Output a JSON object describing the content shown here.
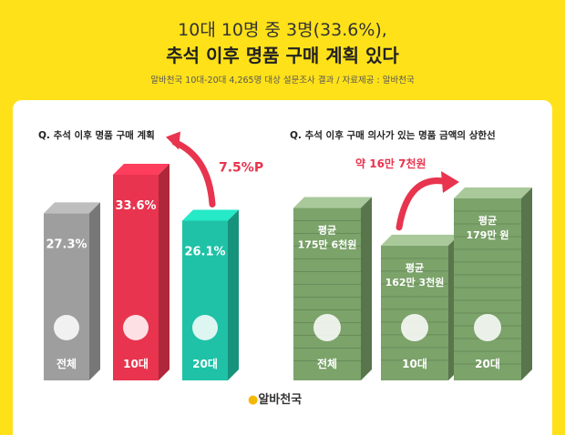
{
  "header": {
    "title_line1": "10대 10명 중 3명(33.6%),",
    "title_line2": "추석 이후 명품 구매 계획 있다",
    "subtitle": "알바천국 10대-20대 4,265명 대상 설문조사 결과 / 자료제공 : 알바천국"
  },
  "chart_data": [
    {
      "type": "bar",
      "title": "Q. 추석 이후 명품 구매 계획",
      "categories": [
        "전체",
        "10대",
        "20대"
      ],
      "values": [
        27.3,
        33.6,
        26.1
      ],
      "value_labels": [
        "27.3%",
        "33.6%",
        "26.1%"
      ],
      "unit": "%",
      "annotation": "7.5%P",
      "colors": [
        "#9E9E9E",
        "#E8344E",
        "#1FC2A6"
      ]
    },
    {
      "type": "bar",
      "title": "Q. 추석 이후 구매 의사가 있는 명품 금액의 상한선",
      "categories": [
        "전체",
        "10대",
        "20대"
      ],
      "values": [
        1756000,
        1623000,
        1790000
      ],
      "value_labels": [
        [
          "평균",
          "175만 6천원"
        ],
        [
          "평균",
          "162만 3천원"
        ],
        [
          "평균",
          "179만 원"
        ]
      ],
      "unit": "원",
      "annotation": "약 16만 7천원",
      "colors": [
        "#7BA36A",
        "#7BA36A",
        "#7BA36A"
      ]
    }
  ],
  "footer": {
    "logo_text": "알바천국"
  }
}
